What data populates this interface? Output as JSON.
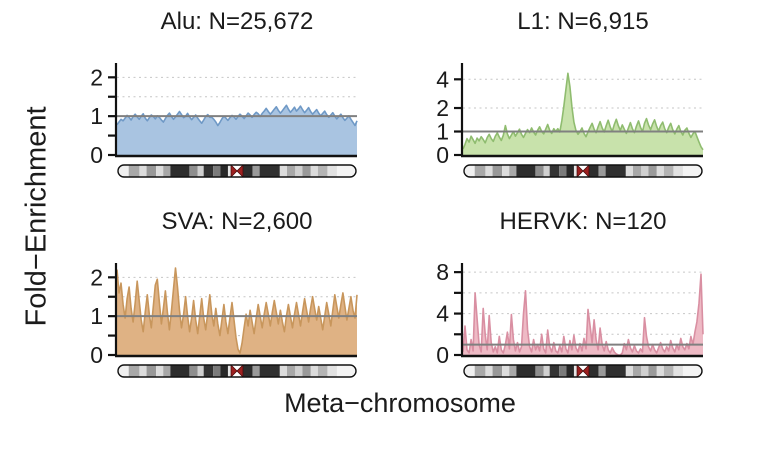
{
  "figure": {
    "ylabel": "Fold−Enrichment",
    "xlabel": "Meta−chromosome",
    "background": "#ffffff"
  },
  "style": {
    "axis_color": "#111111",
    "grid_color": "#c6c6c6",
    "refline_color": "#808080",
    "tick_label_size": 23,
    "text_color": "#1b1b1b"
  },
  "chart_data": [
    {
      "type": "area",
      "name": "Alu",
      "n": "25,672",
      "title": "Alu: N=25,672",
      "fill": "#a9c4e1",
      "stroke": "#6f99c6",
      "ylim": [
        0,
        2.24
      ],
      "scale": [
        [
          0,
          0
        ],
        [
          2.24,
          1
        ]
      ],
      "ticks": [
        {
          "v": 0,
          "label": "0"
        },
        {
          "v": 0.5
        },
        {
          "v": 1,
          "label": "1"
        },
        {
          "v": 1.5
        },
        {
          "v": 2,
          "label": "2"
        }
      ],
      "gridlines": [
        0.5,
        1.5,
        2
      ],
      "refline": 1,
      "values": [
        0.78,
        0.85,
        0.92,
        0.88,
        0.95,
        1.02,
        0.97,
        0.9,
        0.99,
        1.05,
        0.98,
        0.92,
        1.0,
        1.06,
        0.95,
        0.88,
        0.96,
        1.03,
        0.99,
        0.93,
        1.01,
        0.97,
        0.9,
        0.85,
        0.94,
        1.02,
        1.08,
        0.99,
        0.92,
        0.98,
        1.05,
        1.12,
        1.04,
        0.96,
        1.0,
        1.07,
        0.98,
        0.91,
        0.97,
        1.03,
        0.95,
        0.88,
        0.82,
        0.9,
        0.99,
        1.04,
        0.97,
        0.97,
        0.92,
        0.85,
        0.76,
        0.84,
        0.93,
        1.0,
        0.95,
        0.89,
        0.96,
        1.02,
        0.98,
        0.92,
        0.99,
        1.05,
        1.0,
        0.94,
        1.01,
        1.08,
        1.03,
        0.97,
        1.04,
        1.1,
        1.06,
        0.99,
        1.07,
        1.13,
        1.2,
        1.12,
        1.05,
        1.11,
        1.18,
        1.24,
        1.15,
        1.08,
        1.14,
        1.21,
        1.28,
        1.18,
        1.1,
        1.16,
        1.23,
        1.13,
        1.19,
        1.26,
        1.17,
        1.09,
        1.15,
        1.22,
        1.12,
        1.05,
        1.11,
        1.17,
        1.08,
        1.01,
        1.07,
        1.13,
        1.04,
        0.97,
        1.03,
        1.09,
        1.0,
        0.93,
        0.99,
        1.05,
        0.96,
        0.89,
        0.95,
        1.01,
        0.92,
        0.84,
        0.76,
        0.88
      ]
    },
    {
      "type": "area",
      "name": "L1",
      "n": "6,915",
      "title": "L1: N=6,915",
      "fill": "#c8e2ab",
      "stroke": "#8fbc6f",
      "ylim": [
        0,
        4.75
      ],
      "scale": [
        [
          0,
          0
        ],
        [
          1,
          0.27
        ],
        [
          2,
          0.54
        ],
        [
          4,
          0.87
        ],
        [
          4.75,
          1
        ]
      ],
      "ticks": [
        {
          "v": 0,
          "label": "0"
        },
        {
          "v": 1,
          "label": "1"
        },
        {
          "v": 2,
          "label": "2"
        },
        {
          "v": 4,
          "label": "4"
        }
      ],
      "gridlines": [
        2,
        4
      ],
      "refline": 1,
      "values": [
        0.25,
        0.45,
        0.7,
        0.55,
        0.8,
        0.65,
        0.5,
        0.72,
        0.6,
        0.78,
        0.66,
        0.52,
        0.74,
        0.88,
        0.7,
        0.58,
        0.8,
        0.94,
        0.76,
        0.62,
        0.84,
        1.25,
        0.9,
        0.7,
        0.85,
        1.0,
        0.8,
        0.95,
        1.1,
        0.88,
        0.75,
        0.92,
        1.08,
        0.95,
        1.15,
        0.98,
        0.85,
        1.05,
        1.2,
        1.0,
        0.9,
        1.1,
        1.3,
        1.05,
        0.92,
        1.12,
        1.0,
        1.12,
        0.98,
        1.45,
        2.1,
        3.3,
        4.4,
        3.5,
        2.1,
        1.4,
        1.05,
        0.88,
        1.0,
        1.15,
        0.92,
        0.78,
        0.98,
        1.18,
        1.35,
        1.1,
        0.95,
        1.2,
        1.42,
        1.15,
        0.98,
        1.25,
        1.48,
        1.2,
        1.0,
        1.3,
        1.52,
        1.25,
        1.05,
        1.28,
        1.1,
        0.92,
        1.15,
        1.38,
        1.12,
        0.95,
        1.22,
        1.45,
        1.18,
        1.0,
        1.35,
        1.55,
        1.28,
        1.08,
        1.32,
        1.5,
        1.22,
        1.02,
        1.25,
        1.4,
        1.12,
        0.95,
        1.18,
        1.35,
        1.08,
        0.9,
        1.1,
        1.25,
        1.0,
        0.85,
        1.05,
        1.15,
        0.92,
        0.75,
        0.9,
        1.0,
        0.78,
        0.55,
        0.35,
        0.22
      ]
    },
    {
      "type": "area",
      "name": "SVA",
      "n": "2,600",
      "title": "SVA: N=2,600",
      "fill": "#dfb284",
      "stroke": "#c8965c",
      "ylim": [
        0,
        2.24
      ],
      "scale": [
        [
          0,
          0
        ],
        [
          2.24,
          1
        ]
      ],
      "ticks": [
        {
          "v": 0,
          "label": "0"
        },
        {
          "v": 0.5
        },
        {
          "v": 1,
          "label": "1"
        },
        {
          "v": 1.5
        },
        {
          "v": 2,
          "label": "2"
        }
      ],
      "gridlines": [
        0.5,
        1.5,
        2
      ],
      "refline": 1,
      "values": [
        2.2,
        1.6,
        1.85,
        1.3,
        0.95,
        1.45,
        1.75,
        1.2,
        0.85,
        1.35,
        1.9,
        1.4,
        0.9,
        0.6,
        1.1,
        1.55,
        1.05,
        0.7,
        1.25,
        1.8,
        1.95,
        1.35,
        0.8,
        1.2,
        1.65,
        1.1,
        0.65,
        1.15,
        1.7,
        2.3,
        1.75,
        1.15,
        0.7,
        1.05,
        1.5,
        1.0,
        0.6,
        0.95,
        1.4,
        0.9,
        0.55,
        1.0,
        1.45,
        0.95,
        0.65,
        1.1,
        1.55,
        1.05,
        0.75,
        1.2,
        0.8,
        0.5,
        0.9,
        1.3,
        0.85,
        0.55,
        0.95,
        1.35,
        0.9,
        0.45,
        0.15,
        0.05,
        0.3,
        0.7,
        1.05,
        0.75,
        1.15,
        0.85,
        0.55,
        0.95,
        1.3,
        1.0,
        0.7,
        1.05,
        1.35,
        1.05,
        0.75,
        1.1,
        1.4,
        1.1,
        0.8,
        1.15,
        0.85,
        0.6,
        1.0,
        1.3,
        1.0,
        0.7,
        1.05,
        1.35,
        1.05,
        0.75,
        1.1,
        1.45,
        1.15,
        0.85,
        1.2,
        1.5,
        1.2,
        0.9,
        1.25,
        0.95,
        0.65,
        1.0,
        1.35,
        1.05,
        0.75,
        1.15,
        1.55,
        1.25,
        0.95,
        1.3,
        1.6,
        1.25,
        0.9,
        1.2,
        1.5,
        1.15,
        0.95,
        1.55
      ]
    },
    {
      "type": "area",
      "name": "HERVK",
      "n": "120",
      "title": "HERVK: N=120",
      "fill": "#eebac5",
      "stroke": "#d98fa2",
      "ylim": [
        0,
        8.4
      ],
      "scale": [
        [
          0,
          0
        ],
        [
          8.4,
          1
        ]
      ],
      "ticks": [
        {
          "v": 0,
          "label": "0"
        },
        {
          "v": 2
        },
        {
          "v": 4,
          "label": "4"
        },
        {
          "v": 6
        },
        {
          "v": 8,
          "label": "8"
        }
      ],
      "gridlines": [
        2,
        4,
        6,
        8
      ],
      "refline": 1,
      "values": [
        0.3,
        2.8,
        0.5,
        0.2,
        1.5,
        0.4,
        6.0,
        3.5,
        1.0,
        0.3,
        4.5,
        2.0,
        0.5,
        3.8,
        1.2,
        0.3,
        0.8,
        0.2,
        1.8,
        0.5,
        0.2,
        1.0,
        2.2,
        0.6,
        3.9,
        1.5,
        0.4,
        1.2,
        0.3,
        0.8,
        4.0,
        6.2,
        2.5,
        0.8,
        0.3,
        1.5,
        0.5,
        1.0,
        0.4,
        2.0,
        0.6,
        0.2,
        2.4,
        0.8,
        0.3,
        1.2,
        0.4,
        0.2,
        0.9,
        0.3,
        1.8,
        0.6,
        0.2,
        1.4,
        0.5,
        1.9,
        0.7,
        0.3,
        1.1,
        0.4,
        1.6,
        0.6,
        4.4,
        2.8,
        1.2,
        3.4,
        1.5,
        0.5,
        2.6,
        1.0,
        0.4,
        1.3,
        0.5,
        0.2,
        0.7,
        0.3,
        0.1,
        0.0,
        0.0,
        0.2,
        1.1,
        0.5,
        1.5,
        0.7,
        0.3,
        0.9,
        0.4,
        0.2,
        0.6,
        0.3,
        3.6,
        1.8,
        0.8,
        0.4,
        1.0,
        0.5,
        0.2,
        0.7,
        1.2,
        0.6,
        0.3,
        0.8,
        0.4,
        1.4,
        0.7,
        0.3,
        1.0,
        0.5,
        1.6,
        0.8,
        0.5,
        1.1,
        0.6,
        1.8,
        1.0,
        2.2,
        3.2,
        5.0,
        7.8,
        2.0
      ]
    }
  ],
  "ideogram": {
    "outline": "#111111",
    "centromere": {
      "start": 0.475,
      "end": 0.525,
      "color": "#9e2020",
      "edge": "#4a0c0c"
    },
    "bands": [
      [
        0.0,
        0.045,
        "#f0f0f0"
      ],
      [
        0.045,
        0.09,
        "#a8a8a8"
      ],
      [
        0.09,
        0.12,
        "#dcdcdc"
      ],
      [
        0.12,
        0.16,
        "#989898"
      ],
      [
        0.16,
        0.19,
        "#dcdcdc"
      ],
      [
        0.19,
        0.22,
        "#a8a8a8"
      ],
      [
        0.22,
        0.3,
        "#2d2d2d"
      ],
      [
        0.3,
        0.335,
        "#8e8e8e"
      ],
      [
        0.335,
        0.36,
        "#d0d0d0"
      ],
      [
        0.36,
        0.4,
        "#343434"
      ],
      [
        0.4,
        0.43,
        "#7a7a7a"
      ],
      [
        0.43,
        0.462,
        "#282828"
      ],
      [
        0.462,
        0.475,
        "#e6e6e6"
      ],
      [
        0.525,
        0.565,
        "#2d2d2d"
      ],
      [
        0.565,
        0.595,
        "#9a9a9a"
      ],
      [
        0.595,
        0.68,
        "#303030"
      ],
      [
        0.68,
        0.71,
        "#dcdcdc"
      ],
      [
        0.71,
        0.745,
        "#a8a8a8"
      ],
      [
        0.745,
        0.775,
        "#d0d0d0"
      ],
      [
        0.775,
        0.81,
        "#9a9a9a"
      ],
      [
        0.81,
        0.84,
        "#dcdcdc"
      ],
      [
        0.84,
        0.88,
        "#b4b4b4"
      ],
      [
        0.88,
        0.92,
        "#e2e2e2"
      ],
      [
        0.92,
        1.0,
        "#f4f4f4"
      ]
    ]
  }
}
